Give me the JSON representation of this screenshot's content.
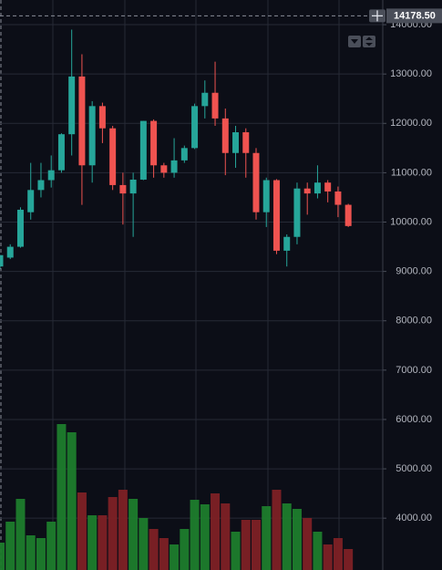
{
  "chart_data": {
    "type": "candlestick",
    "open": [
      9100,
      9280,
      9500,
      10200,
      10650,
      10850,
      11050,
      11780,
      12950,
      11150,
      12350,
      11900,
      10750,
      10580,
      10860,
      12050,
      11150,
      11000,
      11250,
      11500,
      12350,
      12620,
      12100,
      11400,
      11820,
      11400,
      10200,
      10850,
      9420,
      9700,
      10680,
      10580,
      10800,
      10620,
      10350
    ],
    "high": [
      9330,
      9550,
      10300,
      11200,
      11200,
      11350,
      11800,
      13900,
      13400,
      12450,
      12420,
      11950,
      11000,
      11000,
      12050,
      12080,
      11200,
      11700,
      11550,
      12400,
      12870,
      13250,
      12300,
      11950,
      11900,
      11500,
      10900,
      10870,
      9750,
      10800,
      10800,
      11150,
      10850,
      10720,
      10370
    ],
    "low": [
      9050,
      9250,
      9480,
      10050,
      10500,
      10700,
      11000,
      11350,
      10350,
      10800,
      11600,
      10650,
      9950,
      9700,
      10850,
      10900,
      10900,
      10900,
      11200,
      11480,
      12100,
      11950,
      10950,
      11100,
      10900,
      10050,
      9900,
      9350,
      9100,
      9550,
      10150,
      10480,
      10400,
      10100,
      9900
    ],
    "close": [
      9330,
      9500,
      10250,
      10650,
      10850,
      11050,
      11780,
      12950,
      11150,
      12350,
      11900,
      10750,
      10580,
      10860,
      12050,
      11150,
      11000,
      11250,
      11500,
      12350,
      12620,
      12100,
      11400,
      11820,
      11400,
      10200,
      10850,
      9420,
      9700,
      10680,
      10580,
      10800,
      10620,
      10350,
      9920
    ],
    "volume": [
      30,
      53,
      78,
      38,
      35,
      53,
      160,
      151,
      85,
      60,
      60,
      80,
      88,
      78,
      57,
      45,
      35,
      28,
      45,
      77,
      72,
      84,
      73,
      42,
      55,
      55,
      70,
      88,
      73,
      67,
      57,
      42,
      28,
      35,
      23
    ],
    "up_color": "#26a69a",
    "down_color": "#ef5350",
    "volume_up_color": "#1e7d2c",
    "volume_down_color": "#7e2125",
    "ylim": [
      2950,
      14500
    ],
    "yticks": [
      {
        "value": 4000,
        "label": "4000.00"
      },
      {
        "value": 5000,
        "label": "5000.00"
      },
      {
        "value": 6000,
        "label": "6000.00"
      },
      {
        "value": 7000,
        "label": "7000.00"
      },
      {
        "value": 8000,
        "label": "8000.00"
      },
      {
        "value": 9000,
        "label": "9000.00"
      },
      {
        "value": 10000,
        "label": "10000.00"
      },
      {
        "value": 11000,
        "label": "11000.00"
      },
      {
        "value": 12000,
        "label": "12000.00"
      },
      {
        "value": 13000,
        "label": "13000.00"
      },
      {
        "value": 14000,
        "label": "14000.00"
      }
    ],
    "crosshair": {
      "value": 14178.5,
      "label": "14178.50"
    },
    "grid": true
  }
}
